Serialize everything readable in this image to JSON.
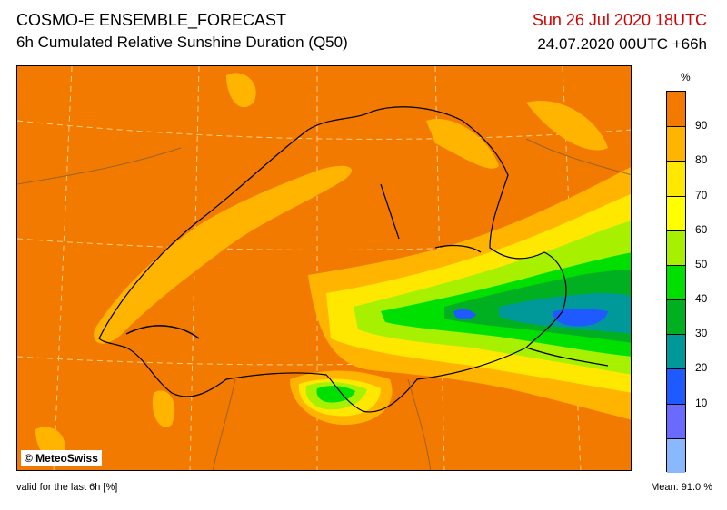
{
  "header": {
    "model": "COSMO-E ENSEMBLE_FORECAST",
    "product": "6h Cumulated Relative Sunshine Duration (Q50)",
    "valid_time": "Sun 26 Jul 2020 18UTC",
    "run_time": "24.07.2020 00UTC +66h"
  },
  "map": {
    "copyright": "© MeteoSwiss",
    "background_color": "#f27a00"
  },
  "legend": {
    "unit": "%",
    "levels": [
      {
        "label": "",
        "color": "#f27a00"
      },
      {
        "label": "90",
        "color": "#ffb400"
      },
      {
        "label": "80",
        "color": "#ffe800"
      },
      {
        "label": "70",
        "color": "#ffff00"
      },
      {
        "label": "60",
        "color": "#a6f000"
      },
      {
        "label": "50",
        "color": "#00e000"
      },
      {
        "label": "40",
        "color": "#00b020"
      },
      {
        "label": "30",
        "color": "#009999"
      },
      {
        "label": "20",
        "color": "#1e5aff"
      },
      {
        "label": "10",
        "color": "#6a6aff"
      },
      {
        "label": "",
        "color": "#8ab8ff"
      }
    ]
  },
  "footer": {
    "valid_note": "valid for the last 6h [%]",
    "mean": "Mean:   91.0 %"
  }
}
